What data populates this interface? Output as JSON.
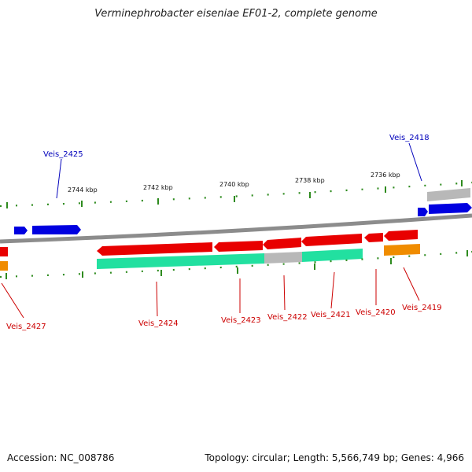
{
  "title": "Verminephrobacter eiseniae EF01-2, complete genome",
  "footer": {
    "accession": "Accession: NC_008786",
    "summary": "Topology: circular; Length: 5,566,749 bp; Genes: 4,966"
  },
  "colors": {
    "backbone": "#8c8c8c",
    "tick": "#2e8b1e",
    "forward_gene": "#0000e0",
    "reverse_gene": "#e80000",
    "cds_region": "#22e0a0",
    "grey_feature": "#b8b8b8",
    "orange_feature": "#f08c00",
    "forward_label": "#0000bb",
    "reverse_label": "#cc0000"
  },
  "ticks": [
    "2744 kbp",
    "2742 kbp",
    "2740 kbp",
    "2738 kbp",
    "2736 kbp"
  ],
  "labels": {
    "forward": [
      "Veis_2425",
      "Veis_2418"
    ],
    "reverse": [
      "Veis_2427",
      "Veis_2424",
      "Veis_2423",
      "Veis_2422",
      "Veis_2421",
      "Veis_2420",
      "Veis_2419"
    ]
  }
}
